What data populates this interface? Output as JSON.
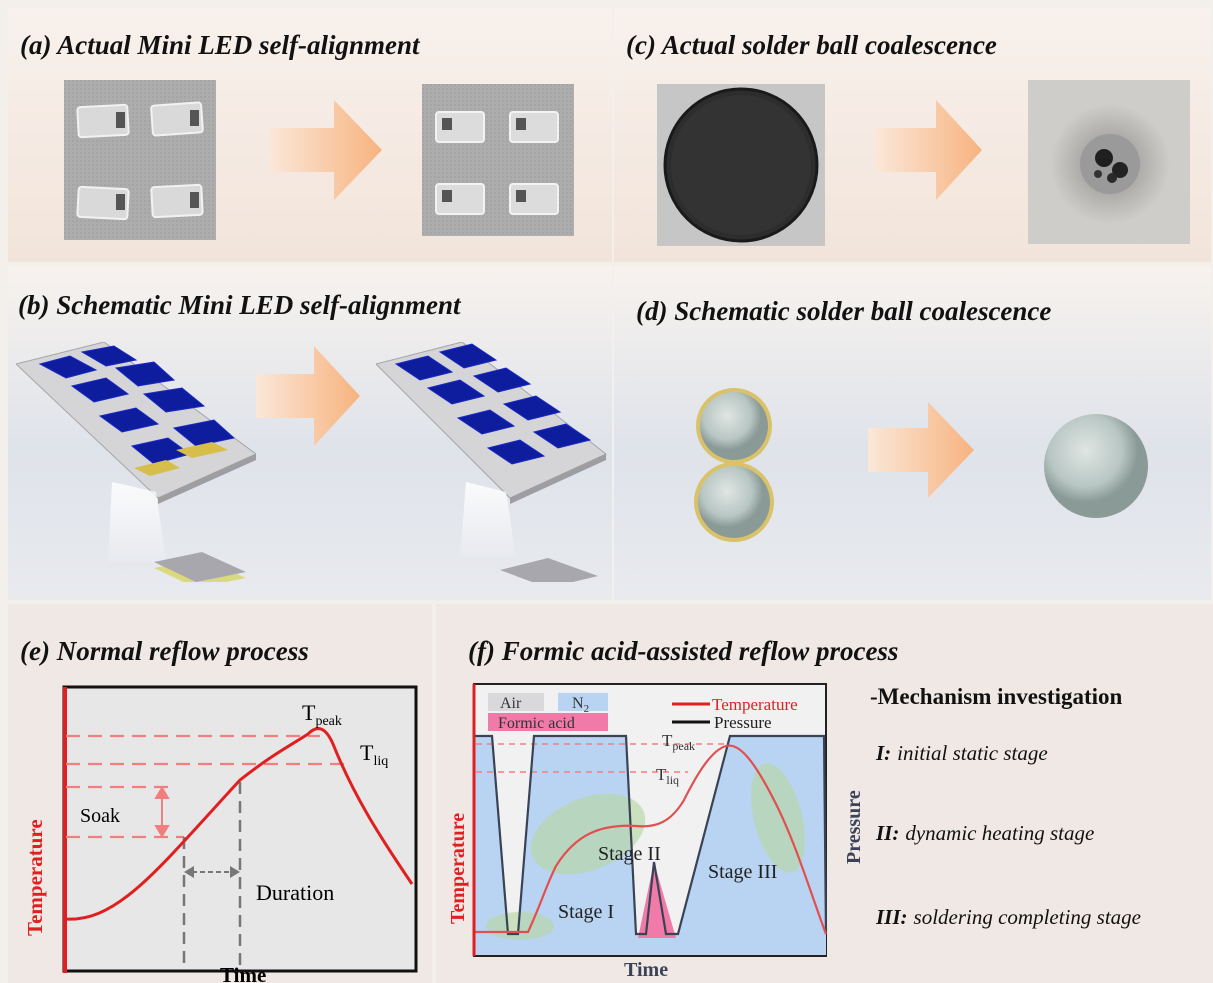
{
  "panels": {
    "a": {
      "title": "(a) Actual Mini LED self-alignment"
    },
    "b": {
      "title": "(b) Schematic Mini LED self-alignment"
    },
    "c": {
      "title": "(c) Actual solder ball coalescence"
    },
    "d": {
      "title": "(d) Schematic solder ball coalescence"
    },
    "e": {
      "title": "(e) Normal reflow process",
      "ylabel": "Temperature",
      "xlabel": "Time",
      "t_peak_main": "T",
      "t_peak_sub": "peak",
      "t_liq_main": "T",
      "t_liq_sub": "liq",
      "soak": "Soak",
      "duration": "Duration"
    },
    "f": {
      "title": "(f) Formic acid-assisted reflow process",
      "ylabel": "Temperature",
      "y2label": "Pressure",
      "xlabel": "Time",
      "air": "Air",
      "n2_main": "N",
      "n2_sub": "2",
      "formic": "Formic acid",
      "legend_temp": "Temperature",
      "legend_pressure": "Pressure",
      "t_peak_main": "T",
      "t_peak_sub": "peak",
      "t_liq_main": "T",
      "t_liq_sub": "liq",
      "stage1": "Stage I",
      "stage2": "Stage II",
      "stage3": "Stage III",
      "colors": {
        "temperature": "#e02020",
        "pressure": "#3a4356",
        "fill": "#b9d4f2",
        "formic": "#f07aa8"
      }
    }
  },
  "mechanism": {
    "heading": "-Mechanism investigation",
    "items": [
      {
        "num": "I:",
        "text": "initial static stage"
      },
      {
        "num": "II:",
        "text": "dynamic heating stage"
      },
      {
        "num": "III:",
        "text": "soldering completing stage"
      }
    ]
  }
}
